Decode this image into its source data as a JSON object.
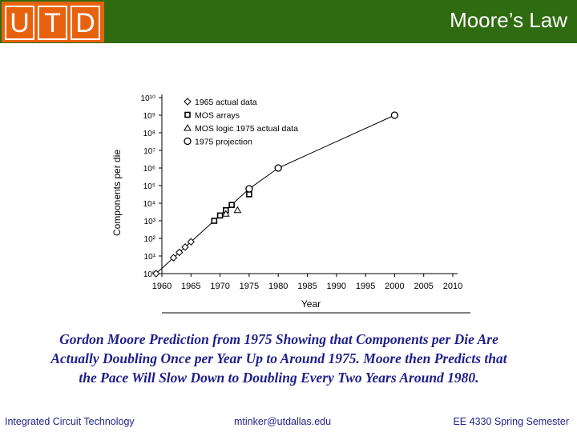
{
  "header": {
    "logo_letters": [
      "U",
      "T",
      "D"
    ],
    "title": "Moore’s Law",
    "background_color": "#2f6b10",
    "logo_color": "#e8620e"
  },
  "chart_data": {
    "type": "scatter",
    "title": "",
    "xlabel": "Year",
    "ylabel": "Components per die",
    "xlim": [
      1960,
      2010
    ],
    "x_ticks": [
      1960,
      1965,
      1970,
      1975,
      1980,
      1985,
      1990,
      1995,
      2000,
      2005,
      2010
    ],
    "y_scale": "log",
    "y_ticks": [
      "10⁰",
      "10¹",
      "10²",
      "10³",
      "10⁴",
      "10⁵",
      "10⁶",
      "10⁷",
      "10⁸",
      "10⁹",
      "10¹⁰"
    ],
    "ylim": [
      1,
      10000000000
    ],
    "legend_position": "top-left",
    "series": [
      {
        "name": "1965 actual data",
        "marker": "diamond",
        "points": [
          [
            1959,
            1
          ],
          [
            1962,
            8
          ],
          [
            1963,
            16
          ],
          [
            1964,
            32
          ],
          [
            1965,
            64
          ]
        ]
      },
      {
        "name": "MOS arrays",
        "marker": "square",
        "points": [
          [
            1969,
            1000
          ],
          [
            1970,
            2000
          ],
          [
            1971,
            4000
          ],
          [
            1972,
            8000
          ],
          [
            1975,
            32000
          ]
        ]
      },
      {
        "name": "MOS logic 1975 actual data",
        "marker": "triangle",
        "points": [
          [
            1971,
            2500
          ],
          [
            1973,
            4000
          ]
        ]
      },
      {
        "name": "1975 projection",
        "marker": "circle",
        "points": [
          [
            1975,
            65536
          ],
          [
            1980,
            1000000
          ],
          [
            2000,
            1000000000
          ]
        ]
      }
    ],
    "trend_line": [
      [
        1959,
        1
      ],
      [
        1975,
        65536
      ],
      [
        1980,
        1000000
      ],
      [
        2000,
        1000000000
      ]
    ]
  },
  "caption": {
    "lines": [
      "Gordon Moore Prediction from 1975 Showing that Components per Die Are",
      "Actually Doubling Once per Year Up to Around 1975.  Moore then Predicts that",
      "the Pace Will Slow Down to Doubling Every Two Years Around 1980."
    ]
  },
  "footer": {
    "left": "Integrated Circuit Technology",
    "center": "mtinker@utdallas.edu",
    "right": "EE 4330 Spring Semester"
  }
}
